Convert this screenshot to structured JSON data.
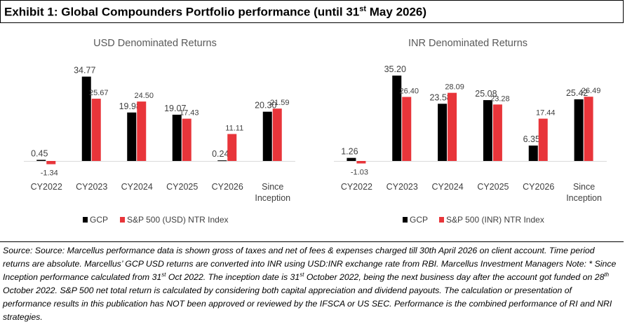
{
  "title": {
    "prefix": "Exhibit 1: Global Compounders Portfolio performance (until 31",
    "sup": "st",
    "suffix": " May 2026)"
  },
  "colors": {
    "gcp": "#000000",
    "index": "#E8353A",
    "axis": "#D9D9D9",
    "label": "#404040",
    "chart_title": "#595959"
  },
  "chart_data": [
    {
      "type": "bar",
      "title": "USD Denominated Returns",
      "categories": [
        [
          "CY2022"
        ],
        [
          "CY2023"
        ],
        [
          "CY2024"
        ],
        [
          "CY2025"
        ],
        [
          "CY2026"
        ],
        [
          "Since",
          "Inception"
        ]
      ],
      "series": [
        {
          "name": "GCP",
          "values": [
            0.45,
            34.77,
            19.98,
            19.07,
            0.24,
            20.3
          ],
          "labels": [
            "0.45",
            "34.77",
            "19.98",
            "19.07",
            "0.24",
            "20.30"
          ]
        },
        {
          "name": "S&P 500 (USD) NTR Index",
          "values": [
            -1.34,
            25.67,
            24.5,
            17.43,
            11.11,
            21.59
          ],
          "labels": [
            "-1.34",
            "25.67",
            "24.50",
            "17.43",
            "11.11",
            "21.59"
          ]
        }
      ],
      "ylim": [
        -5,
        38
      ],
      "grid": false,
      "legend": "bottom"
    },
    {
      "type": "bar",
      "title": "INR Denominated Returns",
      "categories": [
        [
          "CY2022"
        ],
        [
          "CY2023"
        ],
        [
          "CY2024"
        ],
        [
          "CY2025"
        ],
        [
          "CY2026"
        ],
        [
          "Since",
          "Inception"
        ]
      ],
      "series": [
        {
          "name": "GCP",
          "values": [
            1.26,
            35.2,
            23.58,
            25.08,
            6.35,
            25.42
          ],
          "labels": [
            "1.26",
            "35.20",
            "23.58",
            "25.08",
            "6.35",
            "25.42"
          ]
        },
        {
          "name": "S&P 500 (INR) NTR Index",
          "values": [
            -1.03,
            26.4,
            28.09,
            23.28,
            17.44,
            26.49
          ],
          "labels": [
            "-1.03",
            "26.40",
            "28.09",
            "23.28",
            "17.44",
            "26.49"
          ]
        }
      ],
      "ylim": [
        -5,
        38
      ],
      "grid": false,
      "legend": "bottom"
    }
  ],
  "note": {
    "p1": "Source: Source: Marcellus performance data is shown gross of taxes and net of fees & expenses charged till 30th April 2026 on client account. Time period returns are absolute. Marcellus’ GCP USD returns are converted into INR using USD:INR exchange rate from RBI. Marcellus Investment Managers Note: * Since Inception performance calculated from 31",
    "sup1": "st",
    "p2": " Oct 2022. The inception date is 31",
    "sup2": "st",
    "p3": " October 2022, being the next business day after the account got funded on 28",
    "sup3": "th",
    "p4": " October 2022. S&P 500 net total return is calculated by considering both capital appreciation and dividend payouts. The calculation or presentation of performance results in this publication has NOT been approved or reviewed by the IFSCA or US SEC. Performance is the combined performance of RI and NRI strategies."
  }
}
